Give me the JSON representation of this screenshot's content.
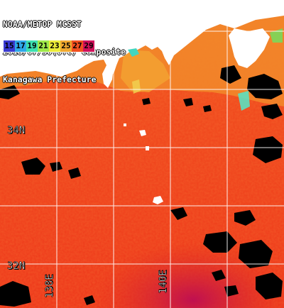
{
  "title": {
    "line1": "NOAA/METOP MCSST",
    "line2": "2018/07/30(UTC) Composite",
    "line3": "Kanagawa Prefecture"
  },
  "legend": {
    "items": [
      {
        "label": "15",
        "color": "#3a3ad0"
      },
      {
        "label": "17",
        "color": "#2fa8e8"
      },
      {
        "label": "19",
        "color": "#3de0b0"
      },
      {
        "label": "21",
        "color": "#9ee84a"
      },
      {
        "label": "23",
        "color": "#ecec3a"
      },
      {
        "label": "25",
        "color": "#f0a830"
      },
      {
        "label": "27",
        "color": "#f05020"
      },
      {
        "label": "29",
        "color": "#d0105a"
      }
    ]
  },
  "grid": {
    "lat_labels": [
      "34N",
      "32N"
    ],
    "lon_labels": [
      "138E",
      "140E"
    ]
  },
  "colors": {
    "land": "#ffffff",
    "cloud_mask": "#000000",
    "gridline": "#ffffff"
  }
}
